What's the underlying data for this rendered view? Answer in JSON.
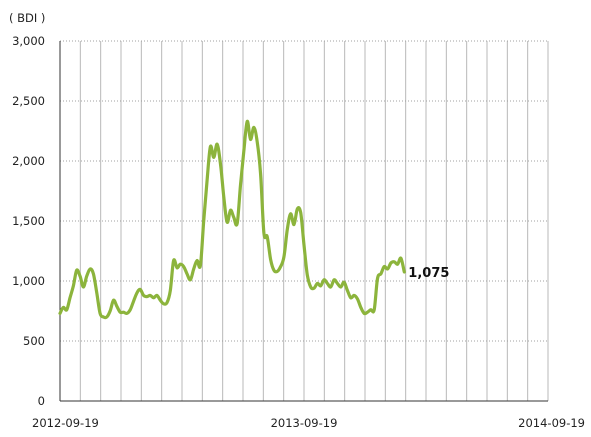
{
  "chart_data": {
    "type": "line",
    "unit_label": "( BDI )",
    "x_tick_labels": [
      "2012-09-19",
      "2013-09-19",
      "2014-09-19"
    ],
    "y_tick_labels": [
      "0",
      "500",
      "1,000",
      "1,500",
      "2,000",
      "2,500",
      "3,000"
    ],
    "ylim": [
      0,
      3000
    ],
    "xlim": [
      "2012-09-19",
      "2014-09-19"
    ],
    "grid": true,
    "end_value_label": "1,075",
    "series": [
      {
        "color": "#8CB43C",
        "points": [
          [
            "2012-09-19",
            730
          ],
          [
            "2012-09-24",
            780
          ],
          [
            "2012-09-29",
            760
          ],
          [
            "2012-10-04",
            860
          ],
          [
            "2012-10-09",
            960
          ],
          [
            "2012-10-14",
            1090
          ],
          [
            "2012-10-19",
            1040
          ],
          [
            "2012-10-24",
            950
          ],
          [
            "2012-10-29",
            1040
          ],
          [
            "2012-11-03",
            1100
          ],
          [
            "2012-11-08",
            1060
          ],
          [
            "2012-11-13",
            900
          ],
          [
            "2012-11-18",
            730
          ],
          [
            "2012-11-23",
            700
          ],
          [
            "2012-11-28",
            700
          ],
          [
            "2012-12-03",
            750
          ],
          [
            "2012-12-08",
            840
          ],
          [
            "2012-12-13",
            790
          ],
          [
            "2012-12-18",
            740
          ],
          [
            "2012-12-23",
            740
          ],
          [
            "2012-12-28",
            730
          ],
          [
            "2013-01-02",
            760
          ],
          [
            "2013-01-07",
            830
          ],
          [
            "2013-01-12",
            900
          ],
          [
            "2013-01-17",
            930
          ],
          [
            "2013-01-22",
            880
          ],
          [
            "2013-01-27",
            870
          ],
          [
            "2013-02-01",
            880
          ],
          [
            "2013-02-06",
            860
          ],
          [
            "2013-02-11",
            880
          ],
          [
            "2013-02-16",
            840
          ],
          [
            "2013-02-21",
            810
          ],
          [
            "2013-02-26",
            820
          ],
          [
            "2013-03-03",
            920
          ],
          [
            "2013-03-08",
            1170
          ],
          [
            "2013-03-13",
            1110
          ],
          [
            "2013-03-18",
            1140
          ],
          [
            "2013-03-23",
            1120
          ],
          [
            "2013-03-28",
            1060
          ],
          [
            "2013-04-02",
            1010
          ],
          [
            "2013-04-07",
            1100
          ],
          [
            "2013-04-12",
            1170
          ],
          [
            "2013-04-17",
            1130
          ],
          [
            "2013-04-22",
            1500
          ],
          [
            "2013-04-27",
            1840
          ],
          [
            "2013-05-02",
            2120
          ],
          [
            "2013-05-07",
            2030
          ],
          [
            "2013-05-12",
            2140
          ],
          [
            "2013-05-17",
            1980
          ],
          [
            "2013-05-22",
            1700
          ],
          [
            "2013-05-27",
            1490
          ],
          [
            "2013-06-01",
            1590
          ],
          [
            "2013-06-06",
            1530
          ],
          [
            "2013-06-11",
            1480
          ],
          [
            "2013-06-16",
            1800
          ],
          [
            "2013-06-21",
            2080
          ],
          [
            "2013-06-26",
            2330
          ],
          [
            "2013-07-01",
            2180
          ],
          [
            "2013-07-06",
            2280
          ],
          [
            "2013-07-11",
            2160
          ],
          [
            "2013-07-16",
            1900
          ],
          [
            "2013-07-21",
            1400
          ],
          [
            "2013-07-26",
            1370
          ],
          [
            "2013-07-31",
            1180
          ],
          [
            "2013-08-05",
            1090
          ],
          [
            "2013-08-10",
            1080
          ],
          [
            "2013-08-15",
            1120
          ],
          [
            "2013-08-20",
            1200
          ],
          [
            "2013-08-25",
            1430
          ],
          [
            "2013-08-30",
            1560
          ],
          [
            "2013-09-04",
            1470
          ],
          [
            "2013-09-09",
            1600
          ],
          [
            "2013-09-14",
            1570
          ],
          [
            "2013-09-19",
            1300
          ],
          [
            "2013-09-24",
            1050
          ],
          [
            "2013-09-29",
            950
          ],
          [
            "2013-10-04",
            940
          ],
          [
            "2013-10-09",
            980
          ],
          [
            "2013-10-14",
            960
          ],
          [
            "2013-10-19",
            1010
          ],
          [
            "2013-10-24",
            980
          ],
          [
            "2013-10-29",
            950
          ],
          [
            "2013-11-03",
            1010
          ],
          [
            "2013-11-08",
            980
          ],
          [
            "2013-11-13",
            950
          ],
          [
            "2013-11-18",
            990
          ],
          [
            "2013-11-23",
            920
          ],
          [
            "2013-11-28",
            860
          ],
          [
            "2013-12-03",
            880
          ],
          [
            "2013-12-08",
            850
          ],
          [
            "2013-12-13",
            780
          ],
          [
            "2013-12-18",
            730
          ],
          [
            "2013-12-23",
            740
          ],
          [
            "2013-12-28",
            760
          ],
          [
            "2014-01-02",
            760
          ],
          [
            "2014-01-07",
            1020
          ],
          [
            "2014-01-12",
            1060
          ],
          [
            "2014-01-17",
            1120
          ],
          [
            "2014-01-22",
            1100
          ],
          [
            "2014-01-27",
            1150
          ],
          [
            "2014-02-01",
            1160
          ],
          [
            "2014-02-06",
            1140
          ],
          [
            "2014-02-11",
            1190
          ],
          [
            "2014-02-16",
            1075
          ]
        ]
      }
    ]
  }
}
